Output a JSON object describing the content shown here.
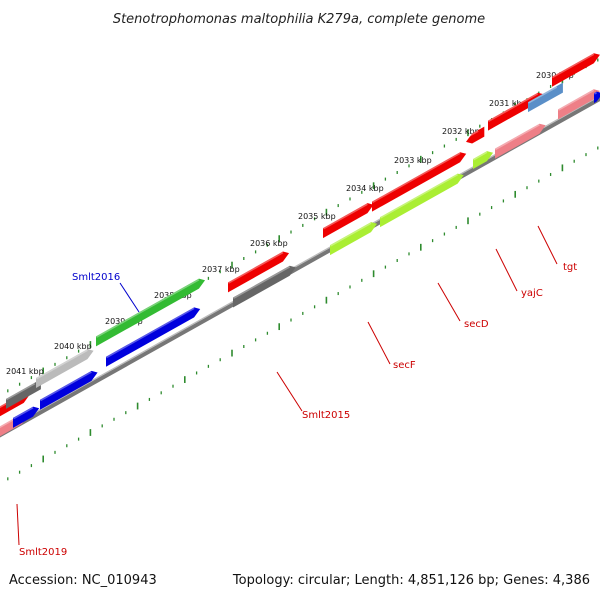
{
  "title": "Stenotrophomonas maltophilia K279a, complete genome",
  "footer": {
    "accession": "Accession: NC_010943",
    "summary": "Topology: circular; Length: 4,851,126 bp; Genes: 4,386"
  },
  "ruler": [
    "2030 kbp",
    "2031 kbp",
    "2032 kbp",
    "2033 kbp",
    "2034 kbp",
    "2035 kbp",
    "2036 kbp",
    "2037 kbp",
    "2038 kbp",
    "2039 kbp",
    "2040 kbp",
    "2041 kbp"
  ],
  "gene_labels": [
    {
      "name": "Smlt2016",
      "color": "#0000cc"
    },
    {
      "name": "tgt",
      "color": "#cc0000"
    },
    {
      "name": "yajC",
      "color": "#cc0000"
    },
    {
      "name": "secD",
      "color": "#cc0000"
    },
    {
      "name": "secF",
      "color": "#cc0000"
    },
    {
      "name": "Smlt2015",
      "color": "#cc0000"
    },
    {
      "name": "Smlt2019",
      "color": "#cc0000"
    }
  ],
  "colors": {
    "backbone": "#8a8a8a",
    "tick": "#2e8b2e",
    "cds": "#ee0000",
    "cds_pale": "#ee7f87",
    "blue": "#0000dd",
    "green": "#33bb33",
    "lime": "#aaee33",
    "grey": "#666666",
    "light_grey": "#bbbbbb",
    "steel": "#5a8fc8"
  }
}
